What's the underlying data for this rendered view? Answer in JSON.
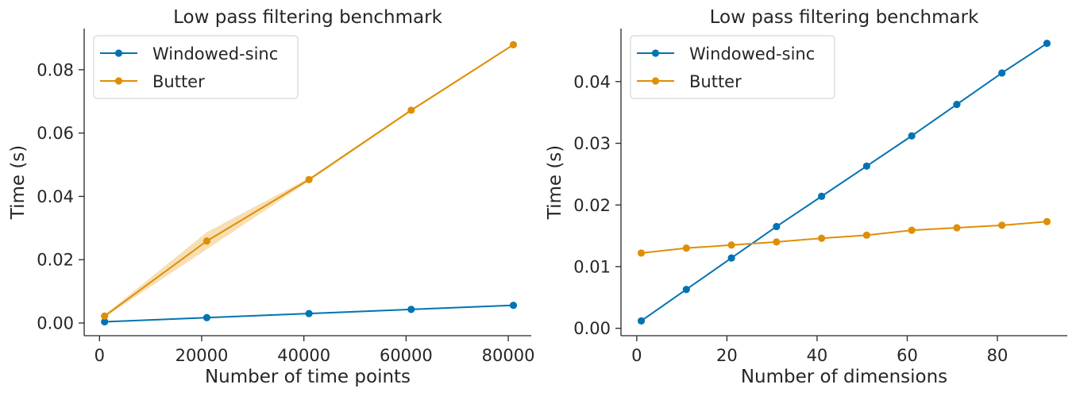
{
  "colors": {
    "windowed_sinc": "#0173b2",
    "butter": "#de8f05",
    "band": "#f6d9a8",
    "axis": "#262626"
  },
  "chart_data": [
    {
      "type": "line",
      "title": "Low pass filtering benchmark",
      "xlabel": "Number of time points",
      "ylabel": "Time (s)",
      "xlim": [
        -3000,
        84500
      ],
      "ylim": [
        -0.004,
        0.093
      ],
      "x": [
        1000,
        21000,
        41000,
        61000,
        81000
      ],
      "xticks": [
        0,
        20000,
        40000,
        60000,
        80000
      ],
      "xtick_labels": [
        "0",
        "20000",
        "40000",
        "60000",
        "80000"
      ],
      "yticks": [
        0.0,
        0.02,
        0.04,
        0.06,
        0.08
      ],
      "ytick_labels": [
        "0.00",
        "0.02",
        "0.04",
        "0.06",
        "0.08"
      ],
      "legend": "top-left",
      "grid": false,
      "series": [
        {
          "name": "Windowed-sinc",
          "color_key": "windowed_sinc",
          "values": [
            0.0004,
            0.0017,
            0.003,
            0.0043,
            0.0056
          ]
        },
        {
          "name": "Butter",
          "color_key": "butter",
          "values": [
            0.0022,
            0.0259,
            0.0453,
            0.0672,
            0.0879
          ],
          "band_low": [
            0.0018,
            0.0233,
            0.0448,
            0.0668,
            0.0876
          ],
          "band_high": [
            0.0026,
            0.0287,
            0.0458,
            0.0676,
            0.0882
          ]
        }
      ]
    },
    {
      "type": "line",
      "title": "Low pass filtering benchmark",
      "xlabel": "Number of dimensions",
      "ylabel": "Time (s)",
      "xlim": [
        -3.5,
        95.5
      ],
      "ylim": [
        -0.0012,
        0.0486
      ],
      "x": [
        1,
        11,
        21,
        31,
        41,
        51,
        61,
        71,
        81,
        91
      ],
      "xticks": [
        0,
        20,
        40,
        60,
        80
      ],
      "xtick_labels": [
        "0",
        "20",
        "40",
        "60",
        "80"
      ],
      "yticks": [
        0.0,
        0.01,
        0.02,
        0.03,
        0.04
      ],
      "ytick_labels": [
        "0.00",
        "0.01",
        "0.02",
        "0.03",
        "0.04"
      ],
      "legend": "top-left",
      "grid": false,
      "series": [
        {
          "name": "Windowed-sinc",
          "color_key": "windowed_sinc",
          "values": [
            0.0012,
            0.0063,
            0.0114,
            0.0165,
            0.0214,
            0.0263,
            0.0312,
            0.0363,
            0.0414,
            0.0462
          ]
        },
        {
          "name": "Butter",
          "color_key": "butter",
          "values": [
            0.0122,
            0.013,
            0.0135,
            0.014,
            0.0146,
            0.0151,
            0.0159,
            0.0163,
            0.0167,
            0.0173
          ]
        }
      ]
    }
  ]
}
